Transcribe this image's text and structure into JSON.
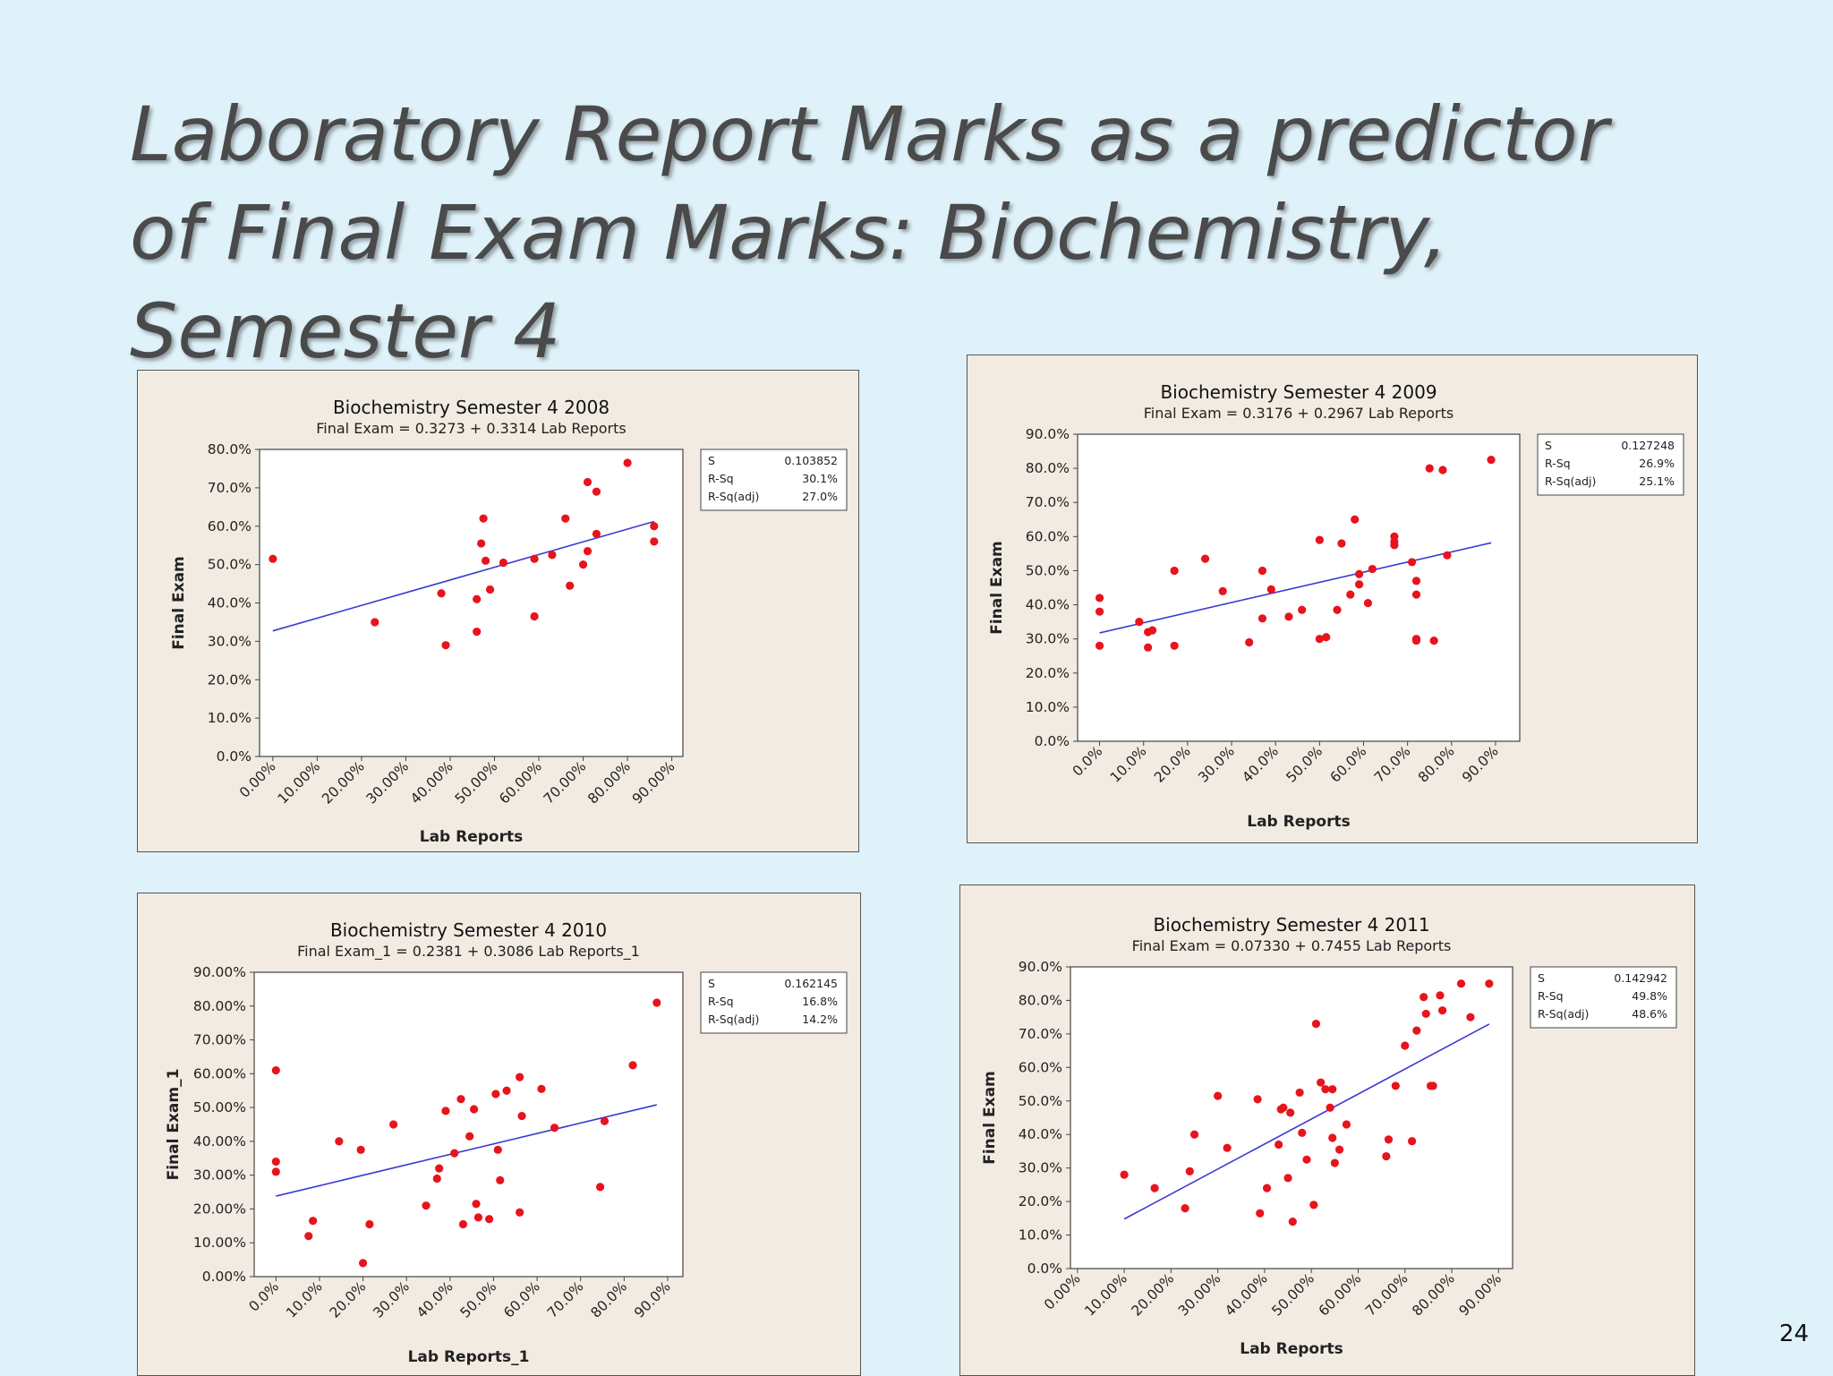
{
  "slide": {
    "title_lines": [
      "Laboratory Report Marks as a predictor",
      "of Final Exam Marks: Biochemistry,",
      "Semester 4"
    ],
    "page_number": "24"
  },
  "colors": {
    "point": "#e8131b",
    "fit_line": "#3a3ad0",
    "panel_bg": "#f1ebe2",
    "plot_bg": "#ffffff",
    "slide_bg": "#dff2fa"
  },
  "chart_data": [
    {
      "type": "scatter",
      "title": "Biochemistry Semester 4 2008",
      "subtitle": "Final Exam  =  0.3273 + 0.3314 Lab Reports",
      "xlabel": "Lab Reports",
      "ylabel": "Final Exam",
      "x_ticks": [
        0,
        10,
        20,
        30,
        40,
        50,
        60,
        70,
        80,
        90
      ],
      "x_tick_labels": [
        "0.00%",
        "10.00%",
        "20.00%",
        "30.00%",
        "40.00%",
        "50.00%",
        "60.00%",
        "70.00%",
        "80.00%",
        "90.00%"
      ],
      "y_ticks": [
        0,
        10,
        20,
        30,
        40,
        50,
        60,
        70,
        80
      ],
      "y_tick_labels": [
        "0.0%",
        "10.0%",
        "20.0%",
        "30.0%",
        "40.0%",
        "50.0%",
        "60.0%",
        "70.0%",
        "80.0%"
      ],
      "xlim": [
        -3,
        92.5
      ],
      "ylim": [
        0,
        80
      ],
      "fit": {
        "intercept": 32.73,
        "slope": 0.3314,
        "x_range": [
          0,
          86
        ]
      },
      "stats": [
        {
          "label": "S",
          "value": "0.103852"
        },
        {
          "label": "R-Sq",
          "value": "30.1%"
        },
        {
          "label": "R-Sq(adj)",
          "value": "27.0%"
        }
      ],
      "points": [
        [
          0,
          51.5
        ],
        [
          23,
          35
        ],
        [
          38,
          42.5
        ],
        [
          39,
          29
        ],
        [
          46,
          32.5
        ],
        [
          46,
          41
        ],
        [
          47,
          55.5
        ],
        [
          47.5,
          62
        ],
        [
          48,
          51
        ],
        [
          49,
          43.5
        ],
        [
          52,
          50.5
        ],
        [
          59,
          36.5
        ],
        [
          59,
          51.5
        ],
        [
          63,
          52.5
        ],
        [
          66,
          62
        ],
        [
          67,
          44.5
        ],
        [
          70,
          50
        ],
        [
          71,
          53.5
        ],
        [
          71,
          71.5
        ],
        [
          73,
          58
        ],
        [
          73,
          69
        ],
        [
          80,
          76.5
        ],
        [
          86,
          60
        ],
        [
          86,
          56
        ]
      ]
    },
    {
      "type": "scatter",
      "title": "Biochemistry Semester 4 2009",
      "subtitle": "Final Exam  =  0.3176 + 0.2967 Lab Reports",
      "xlabel": "Lab Reports",
      "ylabel": "Final Exam",
      "x_ticks": [
        0,
        10,
        20,
        30,
        40,
        50,
        60,
        70,
        80,
        90
      ],
      "x_tick_labels": [
        "0.0%",
        "10.0%",
        "20.0%",
        "30.0%",
        "40.0%",
        "50.0%",
        "60.0%",
        "70.0%",
        "80.0%",
        "90.0%"
      ],
      "y_ticks": [
        0,
        10,
        20,
        30,
        40,
        50,
        60,
        70,
        80,
        90
      ],
      "y_tick_labels": [
        "0.0%",
        "10.0%",
        "20.0%",
        "30.0%",
        "40.0%",
        "50.0%",
        "60.0%",
        "70.0%",
        "80.0%",
        "90.0%"
      ],
      "xlim": [
        -5,
        95.5
      ],
      "ylim": [
        0,
        90
      ],
      "fit": {
        "intercept": 31.76,
        "slope": 0.2967,
        "x_range": [
          0,
          89
        ]
      },
      "stats": [
        {
          "label": "S",
          "value": "0.127248"
        },
        {
          "label": "R-Sq",
          "value": "26.9%"
        },
        {
          "label": "R-Sq(adj)",
          "value": "25.1%"
        }
      ],
      "points": [
        [
          0,
          42
        ],
        [
          0,
          38
        ],
        [
          0,
          28
        ],
        [
          9,
          35
        ],
        [
          11,
          32
        ],
        [
          11,
          27.5
        ],
        [
          12,
          32.5
        ],
        [
          17,
          50
        ],
        [
          17,
          28
        ],
        [
          24,
          53.5
        ],
        [
          28,
          44
        ],
        [
          34,
          29
        ],
        [
          37,
          50
        ],
        [
          37,
          36
        ],
        [
          39,
          44.5
        ],
        [
          43,
          36.5
        ],
        [
          46,
          38.5
        ],
        [
          50,
          59
        ],
        [
          50,
          30
        ],
        [
          51.5,
          30.5
        ],
        [
          54,
          38.5
        ],
        [
          55,
          58
        ],
        [
          57,
          43
        ],
        [
          58,
          65
        ],
        [
          59,
          49
        ],
        [
          59,
          46
        ],
        [
          61,
          40.5
        ],
        [
          62,
          50.5
        ],
        [
          67,
          60
        ],
        [
          67,
          58.5
        ],
        [
          67,
          57.5
        ],
        [
          71,
          52.5
        ],
        [
          72,
          47
        ],
        [
          72,
          43
        ],
        [
          72,
          30
        ],
        [
          72,
          29.5
        ],
        [
          75,
          80
        ],
        [
          76,
          29.5
        ],
        [
          78,
          79.5
        ],
        [
          79,
          54.5
        ],
        [
          89,
          82.5
        ]
      ]
    },
    {
      "type": "scatter",
      "title": "Biochemistry Semester 4 2010",
      "subtitle": "Final Exam_1  =  0.2381 + 0.3086 Lab Reports_1",
      "xlabel": "Lab Reports_1",
      "ylabel": "Final Exam_1",
      "x_ticks": [
        0,
        10,
        20,
        30,
        40,
        50,
        60,
        70,
        80,
        90
      ],
      "x_tick_labels": [
        "0.0%",
        "10.0%",
        "20.0%",
        "30.0%",
        "40.0%",
        "50.0%",
        "60.0%",
        "70.0%",
        "80.0%",
        "90.0%"
      ],
      "y_ticks": [
        0,
        10,
        20,
        30,
        40,
        50,
        60,
        70,
        80,
        90
      ],
      "y_tick_labels": [
        "0.00%",
        "10.00%",
        "20.00%",
        "30.00%",
        "40.00%",
        "50.00%",
        "60.00%",
        "70.00%",
        "80.00%",
        "90.00%"
      ],
      "xlim": [
        -5,
        93.5
      ],
      "ylim": [
        0,
        90
      ],
      "fit": {
        "intercept": 23.81,
        "slope": 0.3086,
        "x_range": [
          0,
          87.5
        ]
      },
      "stats": [
        {
          "label": "S",
          "value": "0.162145"
        },
        {
          "label": "R-Sq",
          "value": "16.8%"
        },
        {
          "label": "R-Sq(adj)",
          "value": "14.2%"
        }
      ],
      "points": [
        [
          0,
          61
        ],
        [
          0,
          34
        ],
        [
          0,
          31
        ],
        [
          7.5,
          12
        ],
        [
          8.5,
          16.5
        ],
        [
          14.5,
          40
        ],
        [
          19.5,
          37.5
        ],
        [
          20,
          4
        ],
        [
          21.5,
          15.5
        ],
        [
          27,
          45
        ],
        [
          34.5,
          21
        ],
        [
          37,
          29
        ],
        [
          37.5,
          32
        ],
        [
          39,
          49
        ],
        [
          41,
          36.5
        ],
        [
          42.5,
          52.5
        ],
        [
          43,
          15.5
        ],
        [
          44.5,
          41.5
        ],
        [
          45.5,
          49.5
        ],
        [
          46,
          21.5
        ],
        [
          46.5,
          17.5
        ],
        [
          49,
          17
        ],
        [
          50.5,
          54
        ],
        [
          51,
          37.5
        ],
        [
          51.5,
          28.5
        ],
        [
          53,
          55
        ],
        [
          56,
          59
        ],
        [
          56,
          19
        ],
        [
          56.5,
          47.5
        ],
        [
          61,
          55.5
        ],
        [
          64,
          44
        ],
        [
          74.5,
          26.5
        ],
        [
          75.5,
          46
        ],
        [
          82,
          62.5
        ],
        [
          87.5,
          81
        ]
      ]
    },
    {
      "type": "scatter",
      "title": "Biochemistry Semester 4 2011",
      "subtitle": "Final Exam  =  0.07330 + 0.7455 Lab Reports",
      "xlabel": "Lab Reports",
      "ylabel": "Final Exam",
      "x_ticks": [
        0,
        10,
        20,
        30,
        40,
        50,
        60,
        70,
        80,
        90
      ],
      "x_tick_labels": [
        "0.00%",
        "10.00%",
        "20.00%",
        "30.00%",
        "40.00%",
        "50.00%",
        "60.00%",
        "70.00%",
        "80.00%",
        "90.00%"
      ],
      "y_ticks": [
        0,
        10,
        20,
        30,
        40,
        50,
        60,
        70,
        80,
        90
      ],
      "y_tick_labels": [
        "0.0%",
        "10.0%",
        "20.0%",
        "30.0%",
        "40.0%",
        "50.0%",
        "60.0%",
        "70.0%",
        "80.0%",
        "90.0%"
      ],
      "xlim": [
        -1.5,
        93
      ],
      "ylim": [
        0,
        90
      ],
      "fit": {
        "intercept": 7.33,
        "slope": 0.7455,
        "x_range": [
          10,
          88
        ]
      },
      "stats": [
        {
          "label": "S",
          "value": "0.142942"
        },
        {
          "label": "R-Sq",
          "value": "49.8%"
        },
        {
          "label": "R-Sq(adj)",
          "value": "48.6%"
        }
      ],
      "points": [
        [
          10,
          28
        ],
        [
          16.5,
          24
        ],
        [
          23,
          18
        ],
        [
          24,
          29
        ],
        [
          25,
          40
        ],
        [
          30,
          51.5
        ],
        [
          32,
          36
        ],
        [
          38.5,
          50.5
        ],
        [
          39,
          16.5
        ],
        [
          40.5,
          24
        ],
        [
          43,
          37
        ],
        [
          43.5,
          47.5
        ],
        [
          44,
          48
        ],
        [
          45,
          27
        ],
        [
          45.5,
          46.5
        ],
        [
          46,
          14
        ],
        [
          47.5,
          52.5
        ],
        [
          48,
          40.5
        ],
        [
          49,
          32.5
        ],
        [
          50.5,
          19
        ],
        [
          51,
          73
        ],
        [
          52,
          55.5
        ],
        [
          53,
          53.5
        ],
        [
          54,
          48
        ],
        [
          54.5,
          53.5
        ],
        [
          54.5,
          39
        ],
        [
          55,
          31.5
        ],
        [
          56,
          35.5
        ],
        [
          57.5,
          43
        ],
        [
          66,
          33.5
        ],
        [
          66.5,
          38.5
        ],
        [
          68,
          54.5
        ],
        [
          70,
          66.5
        ],
        [
          71.5,
          38
        ],
        [
          72.5,
          71
        ],
        [
          74,
          81
        ],
        [
          74.5,
          76
        ],
        [
          75.5,
          54.5
        ],
        [
          76,
          54.5
        ],
        [
          77.5,
          81.5
        ],
        [
          78,
          77
        ],
        [
          82,
          85
        ],
        [
          84,
          75
        ],
        [
          88,
          85
        ]
      ]
    }
  ]
}
